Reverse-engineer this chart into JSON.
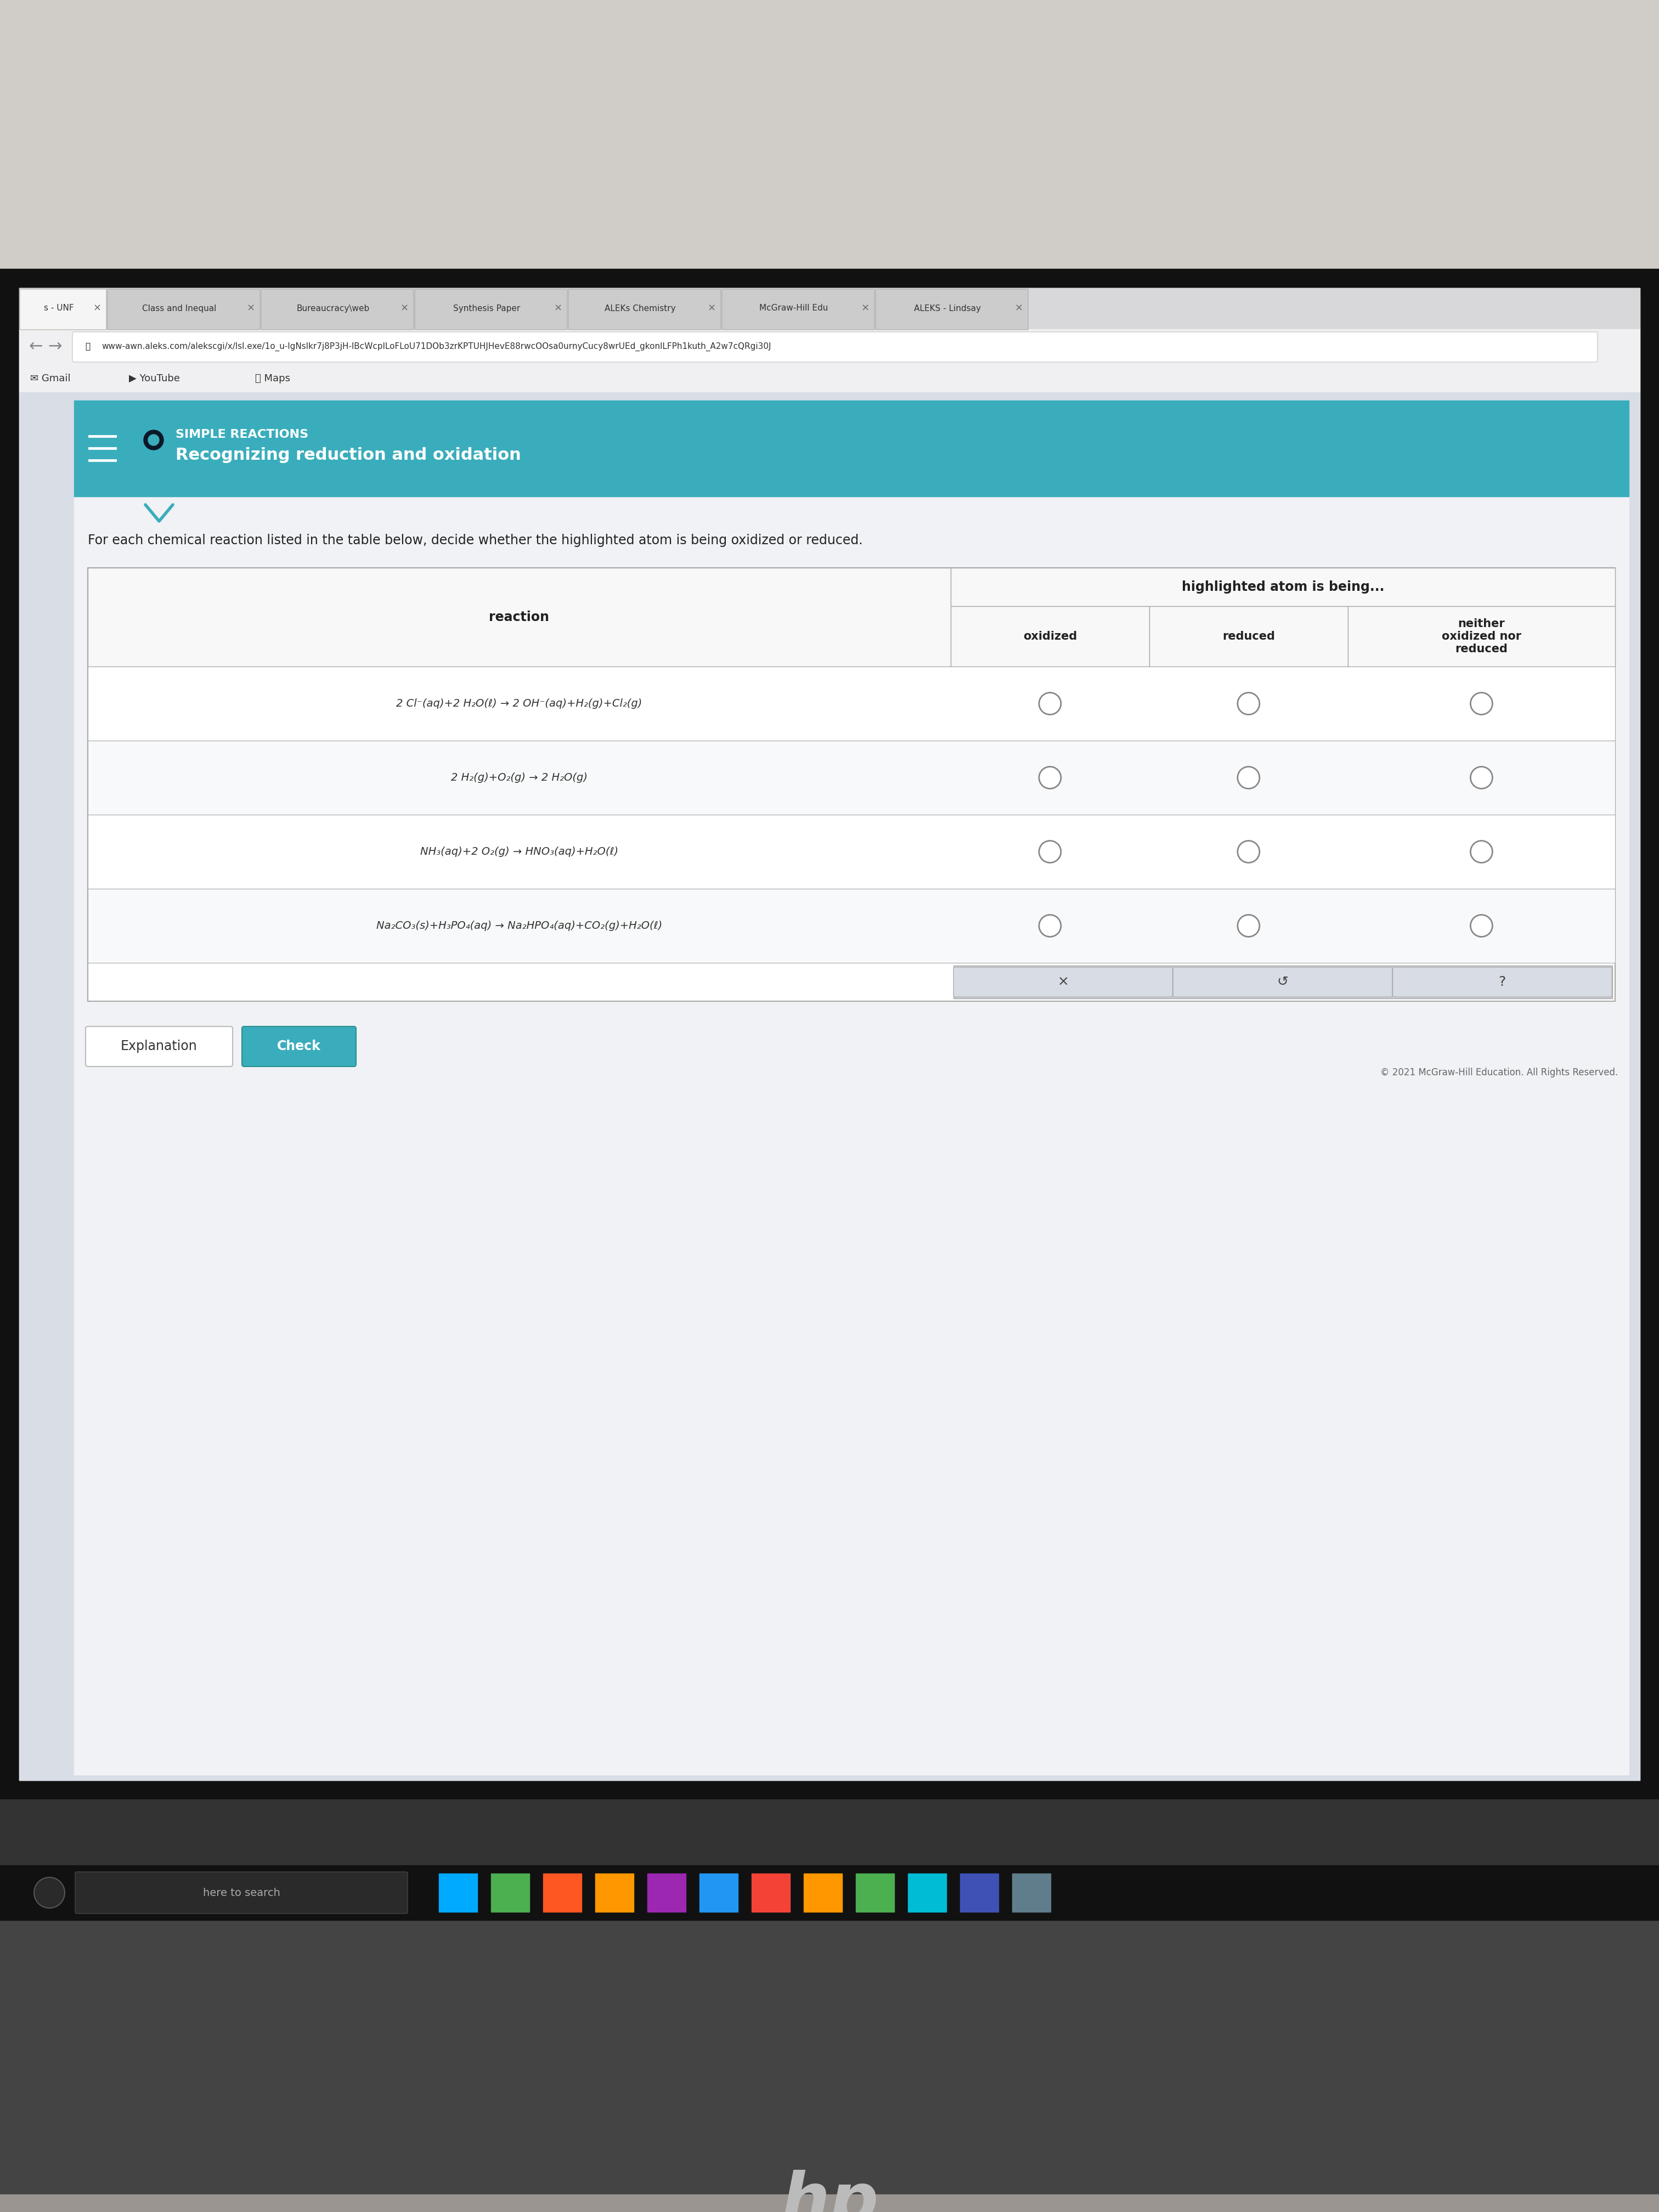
{
  "bg_top_color": "#c0bdb8",
  "bg_wall_color": "#c8c5c0",
  "laptop_frame_color": "#1a1a1a",
  "laptop_bezel_color": "#222222",
  "screen_bg": "#d8d5d0",
  "browser_bg": "#f0f0f2",
  "tab_bar_bg": "#e0dfe0",
  "tab_active_color": "#f5f5f5",
  "tab_inactive_color": "#d8d8d8",
  "url_bar_bg": "#f5f5f5",
  "url_box_bg": "#ffffff",
  "bookmark_bar_bg": "#f0f0f2",
  "content_outer_bg": "#dde3eb",
  "content_inner_bg": "#ffffff",
  "teal_header_bg": "#3aadbc",
  "teal_dark": "#2a9dac",
  "white": "#ffffff",
  "table_border": "#cccccc",
  "table_header_bg": "#f8f8f8",
  "row_bg_even": "#ffffff",
  "row_bg_odd": "#f8f9fa",
  "text_dark": "#222222",
  "text_medium": "#555555",
  "text_light": "#888888",
  "radio_stroke": "#888888",
  "action_box_bg": "#d4d8e0",
  "taskbar_bg": "#1a1a1a",
  "taskbar_search_bg": "#2a2a2a",
  "bottom_bar_bg": "#888880",
  "desk_bg": "#9a9590",
  "title": "SIMPLE REACTIONS",
  "subtitle": "Recognizing reduction and oxidation",
  "instruction": "For each chemical reaction listed in the table below, decide whether the highlighted atom is being oxidized or reduced.",
  "col_header_main": "highlighted atom is being...",
  "col_header_reaction": "reaction",
  "col_header_oxidized": "oxidized",
  "col_header_reduced": "reduced",
  "col_header_neither": "neither\noxidized nor\nreduced",
  "reactions": [
    "2 Cl⁻(aq)+2 H₂O(ℓ) → 2 OH⁻(aq)+H₂(g)+Cl₂(g)",
    "2 H₂(g)+O₂(g) → 2 H₂O(g)",
    "NH₃(aq)+2 O₂(g) → HNO₃(aq)+H₂O(ℓ)",
    "Na₂CO₃(s)+H₃PO₄(aq) → Na₂HPO₄(aq)+CO₂(g)+H₂O(ℓ)"
  ],
  "url": "www-awn.aleks.com/alekscgi/x/lsl.exe/1o_u-lgNslkr7j8P3jH-lBcWcplLoFLoU71DOb3zrKPTUHJHevE88rwcOOsa0urnyCucy8wrUEd_gkonlLFPh1kuth_A2w7cQRgi30J",
  "tab_names": [
    "s - UNF",
    "Class and Inequal",
    "Bureaucracy\\web",
    "Synthesis Paper",
    "ALEKs Chemistry",
    "McGraw-Hill Edu",
    "ALEKS - Lindsay"
  ],
  "button_explanation": "Explanation",
  "button_check": "Check",
  "footer": "© 2021 McGraw-Hill Education. All Rights Reserved.",
  "search_text": "here to search",
  "hp_logo": "hp"
}
